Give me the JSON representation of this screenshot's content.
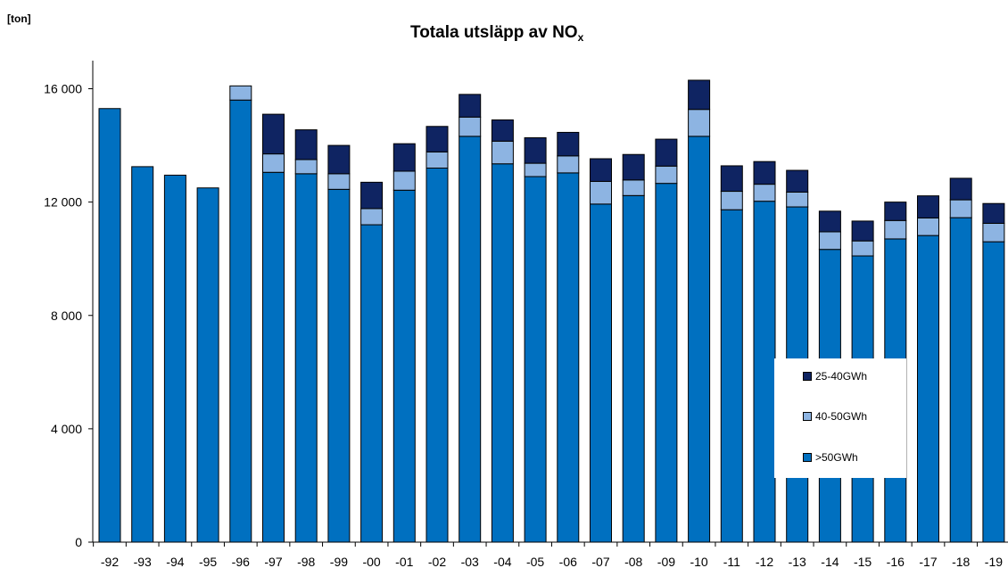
{
  "chart_data": {
    "type": "bar",
    "stacked": true,
    "title_main": "Totala utsläpp av NO",
    "title_sub": "x",
    "unit_label": "[ton]",
    "ylim": [
      0,
      17000
    ],
    "yticks": [
      0,
      4000,
      8000,
      12000,
      16000
    ],
    "ytick_labels": [
      "0",
      "4 000",
      "8 000",
      "12 000",
      "16 000"
    ],
    "categories": [
      "-92",
      "-93",
      "-94",
      "-95",
      "-96",
      "-97",
      "-98",
      "-99",
      "-00",
      "-01",
      "-02",
      "-03",
      "-04",
      "-05",
      "-06",
      "-07",
      "-08",
      "-09",
      "-10",
      "-11",
      "-12",
      "-13",
      "-14",
      "-15",
      "-16",
      "-17",
      "-18",
      "-19"
    ],
    "series": [
      {
        "name": ">50GWh",
        "color": "#0070C0",
        "values": [
          15300,
          13250,
          12950,
          12500,
          15600,
          13050,
          13000,
          12450,
          11200,
          12420,
          13200,
          14320,
          13350,
          12900,
          13030,
          11930,
          12230,
          12660,
          14320,
          11730,
          12030,
          11830,
          10330,
          10100,
          10700,
          10820,
          11450,
          10600
        ]
      },
      {
        "name": "40-50GWh",
        "color": "#8DB4E2",
        "values": [
          0,
          0,
          0,
          0,
          500,
          650,
          500,
          550,
          570,
          670,
          570,
          680,
          800,
          470,
          600,
          800,
          550,
          610,
          950,
          650,
          600,
          520,
          620,
          530,
          650,
          620,
          630,
          650
        ]
      },
      {
        "name": "25-40GWh",
        "color": "#0F2462",
        "values": [
          0,
          0,
          0,
          0,
          0,
          1400,
          1050,
          1000,
          930,
          970,
          900,
          800,
          750,
          900,
          830,
          800,
          900,
          950,
          1030,
          900,
          800,
          770,
          730,
          700,
          650,
          780,
          760,
          700
        ]
      }
    ],
    "legend_order": [
      "25-40GWh",
      "40-50GWh",
      ">50GWh"
    ],
    "legend_position": "bottom-right inside plot",
    "grid": false
  }
}
